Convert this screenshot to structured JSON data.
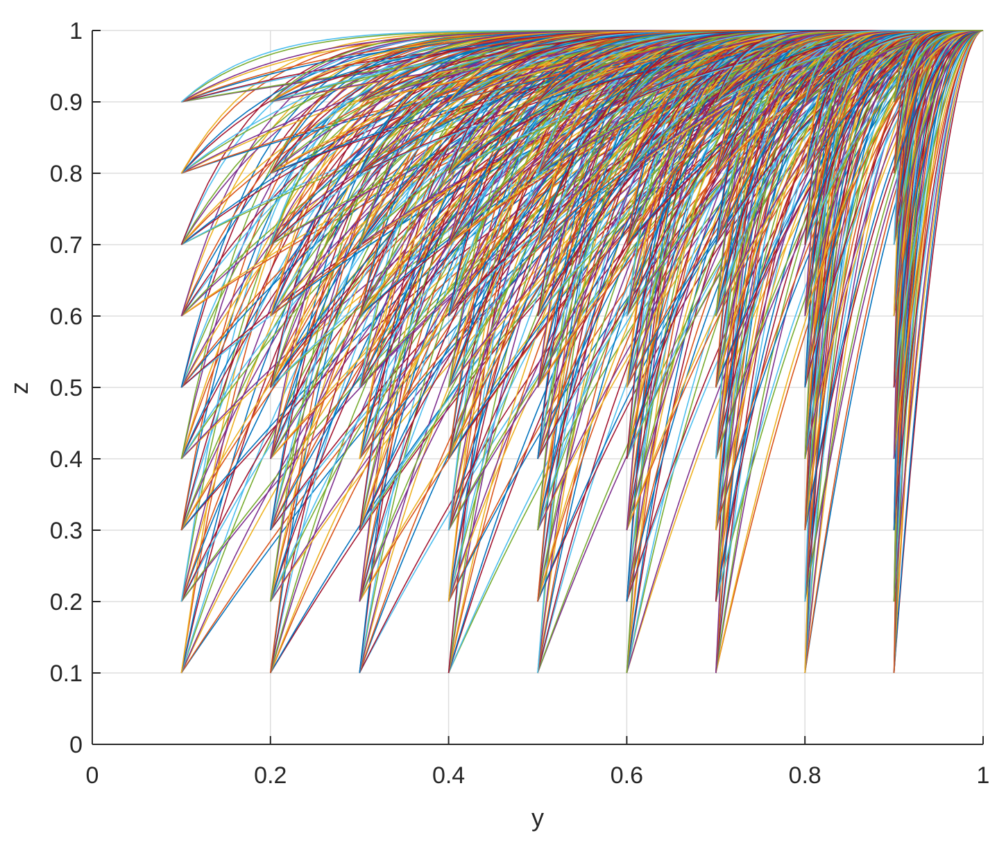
{
  "chart_data": {
    "type": "line",
    "title": "",
    "xlabel": "y",
    "ylabel": "z",
    "xlim": [
      0,
      1
    ],
    "ylim": [
      0,
      1
    ],
    "grid": true,
    "legend": "none",
    "x_ticks": [
      "0",
      "0.2",
      "0.4",
      "0.6",
      "0.8",
      "1"
    ],
    "y_ticks": [
      "0",
      "0.1",
      "0.2",
      "0.3",
      "0.4",
      "0.5",
      "0.6",
      "0.7",
      "0.8",
      "0.9",
      "1"
    ],
    "start_y_values": [
      0.1,
      0.2,
      0.3,
      0.4,
      0.5,
      0.6,
      0.7,
      0.8,
      0.9
    ],
    "start_z_values": [
      0.1,
      0.2,
      0.3,
      0.4,
      0.5,
      0.6,
      0.7,
      0.8,
      0.9
    ],
    "end_point": [
      1,
      1
    ],
    "series_colors": [
      "#0072BD",
      "#D95319",
      "#EDB120",
      "#7E2F8E",
      "#77AC30",
      "#4DBEEE",
      "#A2142F"
    ]
  }
}
